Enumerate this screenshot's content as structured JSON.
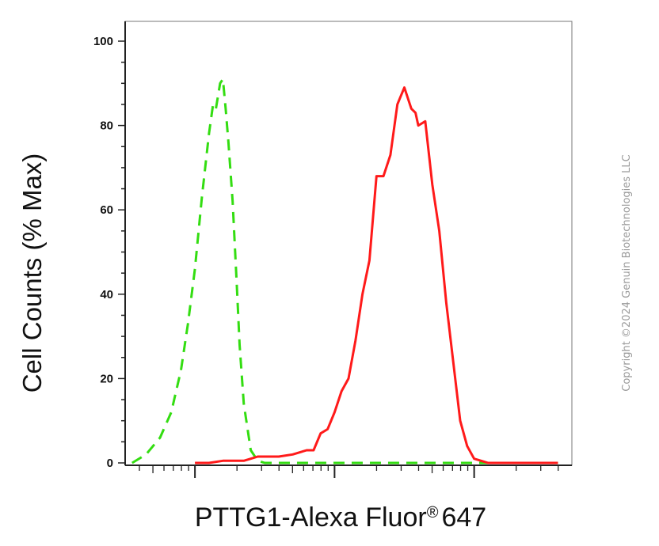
{
  "chart_data": {
    "type": "line",
    "title": "",
    "xlabel": "PTTG1-Alexa Fluor",
    "xlabel_mark": "®",
    "xlabel_suffix": "647",
    "ylabel": "Cell Counts (% Max)",
    "x_scale": "log",
    "x_unit": "log10 fluorescence (decades)",
    "xlim": [
      0,
      3.2
    ],
    "ylim": [
      0,
      100
    ],
    "y_ticks": [
      0,
      20,
      40,
      60,
      80,
      100
    ],
    "x_major_ticks": [
      0.5,
      1.5,
      2.5
    ],
    "grid": false,
    "legend": "none",
    "series": [
      {
        "color": "#33dd11",
        "style": "dashed",
        "x": [
          0.05,
          0.15,
          0.25,
          0.33,
          0.4,
          0.45,
          0.5,
          0.55,
          0.6,
          0.63,
          0.65,
          0.68,
          0.7,
          0.72,
          0.74,
          0.77,
          0.8,
          0.82,
          0.85,
          0.9,
          0.95,
          1.0,
          1.1,
          1.3,
          1.6,
          1.9,
          2.2,
          2.5,
          2.8,
          3.1
        ],
        "y": [
          0,
          2,
          6,
          12,
          22,
          33,
          46,
          63,
          78,
          85,
          84,
          90,
          91,
          84,
          76,
          62,
          42,
          28,
          14,
          3,
          0.5,
          0,
          0,
          0,
          0,
          0,
          0,
          0,
          0,
          0
        ]
      },
      {
        "color": "#ff1a1a",
        "style": "solid",
        "x": [
          0.5,
          0.6,
          0.7,
          0.75,
          0.8,
          0.85,
          0.9,
          0.95,
          1.0,
          1.1,
          1.2,
          1.3,
          1.35,
          1.4,
          1.45,
          1.5,
          1.55,
          1.6,
          1.65,
          1.7,
          1.75,
          1.8,
          1.85,
          1.9,
          1.95,
          2.0,
          2.05,
          2.08,
          2.1,
          2.15,
          2.2,
          2.25,
          2.3,
          2.35,
          2.4,
          2.45,
          2.5,
          2.55,
          2.6,
          2.7,
          2.8,
          2.9,
          3.0,
          3.1
        ],
        "y": [
          0,
          0,
          0.5,
          0.5,
          0.5,
          0.5,
          1,
          1.5,
          1.5,
          1.5,
          2,
          3,
          3,
          7,
          8,
          12,
          17,
          20,
          29,
          40,
          48,
          68,
          68,
          73,
          85,
          89,
          84,
          83,
          80,
          81,
          66,
          55,
          38,
          24,
          10,
          4,
          1,
          0.5,
          0,
          0,
          0,
          0,
          0,
          0
        ]
      }
    ]
  },
  "copyright": "Copyright ©2024 Genuin Biotechnologies LLC",
  "colors": {
    "axis": "#222222",
    "isotype": "#33dd11",
    "sample": "#ff1a1a",
    "watermark": "#9a9a9a"
  }
}
